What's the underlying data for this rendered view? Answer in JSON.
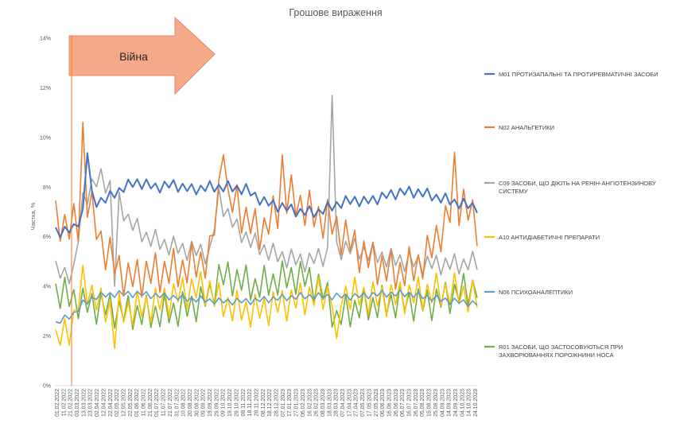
{
  "chart_data": {
    "type": "line",
    "title": "Грошове вираження",
    "ylabel": "Частка, %",
    "xlabel": "",
    "ylim": [
      0,
      14
    ],
    "yticks": [
      "0%",
      "2%",
      "4%",
      "6%",
      "8%",
      "10%",
      "12%",
      "14%"
    ],
    "grid": false,
    "legend_position": "right",
    "annotation": {
      "text": "Війна",
      "type": "arrow",
      "marker_date": "24.02.2022"
    },
    "x_tick_labels": [
      "01.02.2022",
      "11.02.2022",
      "21.02.2022",
      "03.03.2022",
      "13.03.2022",
      "23.03.2022",
      "02.04.2022",
      "12.04.2022",
      "22.04.2022",
      "02.05.2022",
      "12.05.2022",
      "22.05.2022",
      "01.06.2022",
      "11.06.2022",
      "21.06.2022",
      "01.07.2022",
      "11.07.2022",
      "21.07.2022",
      "31.07.2022",
      "10.08.2022",
      "20.08.2022",
      "30.08.2022",
      "09.09.2022",
      "19.09.2022",
      "29.09.2022",
      "09.10.2022",
      "19.10.2022",
      "29.10.2022",
      "08.11.2022",
      "18.11.2022",
      "28.11.2022",
      "08.12.2022",
      "18.12.2022",
      "28.12.2022",
      "07.01.2023",
      "17.01.2023",
      "27.01.2023",
      "06.02.2023",
      "16.02.2023",
      "26.02.2023",
      "08.03.2023",
      "18.03.2023",
      "28.03.2023",
      "07.04.2023",
      "17.04.2023",
      "27.04.2023",
      "07.05.2023",
      "17.05.2023",
      "27.05.2023",
      "06.06.2023",
      "16.06.2023",
      "26.06.2023",
      "06.07.2023",
      "16.07.2023",
      "26.07.2023",
      "05.08.2023",
      "15.08.2023",
      "25.08.2023",
      "04.09.2023",
      "14.09.2023",
      "24.09.2023",
      "04.10.2023",
      "14.10.2023",
      "24.10.2023"
    ],
    "series": [
      {
        "name": "M01 ПРОТИЗАПАЛЬНІ ТА ПРОТИРЕВМАТИЧНІ ЗАСОБИ",
        "color": "#4472C4",
        "anchors": [
          [
            0,
            6.2
          ],
          [
            4,
            6.3
          ],
          [
            6,
            7.0
          ],
          [
            7,
            9.5
          ],
          [
            8,
            7.6
          ],
          [
            9,
            7.4
          ],
          [
            12,
            7.6
          ],
          [
            15,
            8.0
          ],
          [
            18,
            8.2
          ],
          [
            22,
            8.0
          ],
          [
            26,
            8.1
          ],
          [
            30,
            7.9
          ],
          [
            34,
            8.0
          ],
          [
            38,
            8.0
          ],
          [
            42,
            7.9
          ],
          [
            46,
            7.4
          ],
          [
            50,
            7.2
          ],
          [
            54,
            7.0
          ],
          [
            58,
            7.0
          ],
          [
            62,
            7.3
          ],
          [
            66,
            7.5
          ],
          [
            68,
            7.4
          ],
          [
            72,
            7.6
          ],
          [
            76,
            7.8
          ],
          [
            80,
            7.8
          ],
          [
            84,
            7.6
          ],
          [
            86,
            7.5
          ],
          [
            90,
            7.3
          ],
          [
            93,
            7.2
          ]
        ],
        "amp": 0.25,
        "period": 2
      },
      {
        "name": "N02 АНАЛЬГЕТИКИ",
        "color": "#ED7D31",
        "anchors": [
          [
            0,
            6.6
          ],
          [
            5,
            6.4
          ],
          [
            6,
            10.6
          ],
          [
            7,
            7.5
          ],
          [
            10,
            5.8
          ],
          [
            13,
            4.9
          ],
          [
            16,
            4.3
          ],
          [
            20,
            4.5
          ],
          [
            24,
            4.6
          ],
          [
            28,
            4.7
          ],
          [
            32,
            5.0
          ],
          [
            34,
            5.2
          ],
          [
            36,
            7.8
          ],
          [
            38,
            7.2
          ],
          [
            40,
            7.5
          ],
          [
            42,
            6.6
          ],
          [
            44,
            6.4
          ],
          [
            46,
            6.3
          ],
          [
            48,
            6.8
          ],
          [
            50,
            7.4
          ],
          [
            52,
            7.6
          ],
          [
            54,
            7.3
          ],
          [
            56,
            7.0
          ],
          [
            58,
            6.8
          ],
          [
            60,
            6.7
          ],
          [
            62,
            6.3
          ],
          [
            64,
            6.0
          ],
          [
            66,
            5.6
          ],
          [
            68,
            5.3
          ],
          [
            70,
            5.0
          ],
          [
            72,
            4.8
          ],
          [
            74,
            4.6
          ],
          [
            76,
            4.6
          ],
          [
            78,
            4.7
          ],
          [
            80,
            4.9
          ],
          [
            82,
            5.2
          ],
          [
            84,
            6.0
          ],
          [
            86,
            6.5
          ],
          [
            88,
            7.4
          ],
          [
            90,
            7.3
          ],
          [
            93,
            6.5
          ]
        ],
        "amp": 0.9,
        "period": 2,
        "spikes": [
          [
            6,
            10.6
          ],
          [
            37,
            9.3
          ],
          [
            50,
            9.3
          ],
          [
            88,
            9.4
          ]
        ]
      },
      {
        "name": "C09 ЗАСОБИ, ЩО ДІЮТЬ НА РЕНІН-АНГІОТЕНЗИНОВУ СИСТЕМУ",
        "color": "#A5A5A5",
        "anchors": [
          [
            0,
            4.6
          ],
          [
            4,
            4.5
          ],
          [
            6,
            7.5
          ],
          [
            8,
            8.0
          ],
          [
            10,
            8.4
          ],
          [
            12,
            8.0
          ],
          [
            14,
            7.4
          ],
          [
            16,
            6.7
          ],
          [
            18,
            6.3
          ],
          [
            20,
            6.0
          ],
          [
            24,
            5.7
          ],
          [
            28,
            5.5
          ],
          [
            32,
            5.4
          ],
          [
            34,
            5.3
          ],
          [
            36,
            7.6
          ],
          [
            38,
            6.9
          ],
          [
            40,
            6.3
          ],
          [
            44,
            5.7
          ],
          [
            48,
            5.3
          ],
          [
            52,
            5.1
          ],
          [
            56,
            5.0
          ],
          [
            58,
            5.2
          ],
          [
            60,
            5.3
          ],
          [
            61,
            11.7
          ],
          [
            62,
            5.4
          ],
          [
            64,
            5.6
          ],
          [
            66,
            5.5
          ],
          [
            70,
            5.3
          ],
          [
            74,
            5.1
          ],
          [
            78,
            5.0
          ],
          [
            82,
            4.9
          ],
          [
            86,
            4.9
          ],
          [
            90,
            4.9
          ],
          [
            93,
            5.0
          ]
        ],
        "amp": 0.45,
        "period": 2,
        "spikes": [
          [
            61,
            11.7
          ],
          [
            13,
            4.0
          ]
        ]
      },
      {
        "name": "A10 АНТИДІАБЕТИЧНІ ПРЕПАРАТИ",
        "color": "#FFC000",
        "anchors": [
          [
            0,
            1.7
          ],
          [
            4,
            2.6
          ],
          [
            6,
            4.2
          ],
          [
            8,
            3.7
          ],
          [
            10,
            3.2
          ],
          [
            14,
            3.0
          ],
          [
            18,
            3.1
          ],
          [
            22,
            3.3
          ],
          [
            26,
            3.6
          ],
          [
            30,
            3.9
          ],
          [
            34,
            3.9
          ],
          [
            36,
            3.4
          ],
          [
            40,
            3.1
          ],
          [
            44,
            3.0
          ],
          [
            48,
            3.2
          ],
          [
            52,
            3.4
          ],
          [
            56,
            3.6
          ],
          [
            60,
            3.7
          ],
          [
            64,
            3.7
          ],
          [
            68,
            3.6
          ],
          [
            72,
            3.5
          ],
          [
            76,
            3.6
          ],
          [
            80,
            3.7
          ],
          [
            84,
            3.8
          ],
          [
            88,
            3.8
          ],
          [
            93,
            3.5
          ]
        ],
        "amp": 0.75,
        "period": 2,
        "spikes": [
          [
            13,
            1.5
          ],
          [
            62,
            1.9
          ]
        ]
      },
      {
        "name": "N06 ПСИХОАНАЛЕПТИКИ",
        "color": "#5B9BD5",
        "anchors": [
          [
            0,
            2.5
          ],
          [
            4,
            2.9
          ],
          [
            6,
            3.3
          ],
          [
            9,
            3.6
          ],
          [
            13,
            3.7
          ],
          [
            18,
            3.7
          ],
          [
            24,
            3.6
          ],
          [
            30,
            3.5
          ],
          [
            36,
            3.4
          ],
          [
            42,
            3.4
          ],
          [
            48,
            3.5
          ],
          [
            54,
            3.6
          ],
          [
            60,
            3.6
          ],
          [
            66,
            3.6
          ],
          [
            72,
            3.7
          ],
          [
            78,
            3.7
          ],
          [
            84,
            3.5
          ],
          [
            88,
            3.4
          ],
          [
            93,
            3.3
          ]
        ],
        "amp": 0.15,
        "period": 2
      },
      {
        "name": "R01 ЗАСОБИ, ЩО ЗАСТОСОВУЮТЬСЯ ПРИ ЗАХВОРЮВАННЯХ ПОРОЖНИНИ НОСА",
        "color": "#70AD47",
        "anchors": [
          [
            0,
            3.8
          ],
          [
            4,
            3.5
          ],
          [
            6,
            3.3
          ],
          [
            10,
            3.2
          ],
          [
            14,
            3.0
          ],
          [
            18,
            2.9
          ],
          [
            22,
            2.9
          ],
          [
            26,
            3.0
          ],
          [
            30,
            3.2
          ],
          [
            34,
            3.6
          ],
          [
            36,
            4.4
          ],
          [
            40,
            4.3
          ],
          [
            44,
            4.0
          ],
          [
            48,
            4.2
          ],
          [
            52,
            4.4
          ],
          [
            56,
            4.3
          ],
          [
            60,
            3.6
          ],
          [
            62,
            2.6
          ],
          [
            64,
            3.0
          ],
          [
            68,
            3.2
          ],
          [
            72,
            3.3
          ],
          [
            76,
            3.4
          ],
          [
            80,
            3.3
          ],
          [
            84,
            3.4
          ],
          [
            88,
            3.7
          ],
          [
            93,
            4.0
          ]
        ],
        "amp": 0.75,
        "period": 2
      }
    ]
  }
}
